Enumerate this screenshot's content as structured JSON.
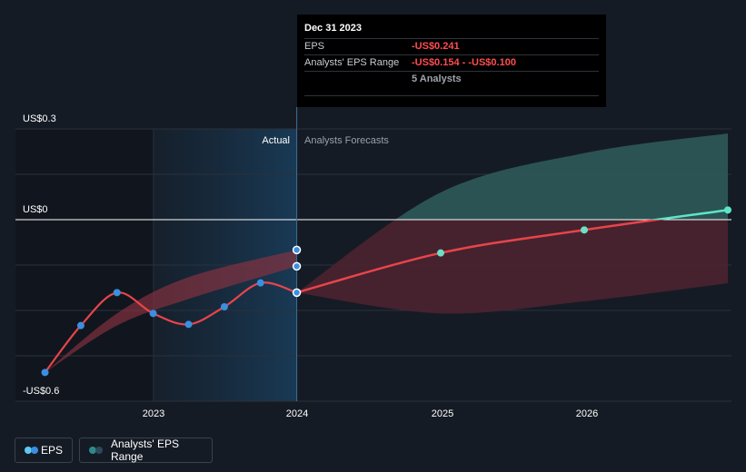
{
  "chart_data": {
    "type": "line",
    "y_axis_labels": [
      "US$0.3",
      "US$0",
      "-US$0.6"
    ],
    "x_ticks": [
      "2023",
      "2024",
      "2025",
      "2026"
    ],
    "region_labels": {
      "actual": "Actual",
      "forecast": "Analysts Forecasts"
    },
    "ylim": [
      -0.6,
      0.3
    ],
    "series": [
      {
        "name": "EPS",
        "points": [
          {
            "x": "2022-03-31",
            "y": -0.505
          },
          {
            "x": "2022-06-30",
            "y": -0.35
          },
          {
            "x": "2022-09-30",
            "y": -0.241
          },
          {
            "x": "2022-12-31",
            "y": -0.31
          },
          {
            "x": "2023-03-31",
            "y": -0.346
          },
          {
            "x": "2023-06-30",
            "y": -0.288
          },
          {
            "x": "2023-09-30",
            "y": -0.209
          },
          {
            "x": "2023-12-31",
            "y": -0.241
          }
        ],
        "color": "#3b8fe0"
      },
      {
        "name": "EPS Forecast",
        "points": [
          {
            "x": "2023-12-31",
            "y": -0.241
          },
          {
            "x": "2024-12-31",
            "y": -0.11
          },
          {
            "x": "2025-12-31",
            "y": -0.034
          },
          {
            "x": "2026-12-31",
            "y": 0.032
          }
        ],
        "color": "#e8444b"
      },
      {
        "name": "Analysts' EPS Range",
        "lower": [
          {
            "x": "2023-12-31",
            "y": -0.241
          },
          {
            "x": "2024-12-31",
            "y": -0.31
          },
          {
            "x": "2025-12-31",
            "y": -0.27
          },
          {
            "x": "2026-12-31",
            "y": -0.21
          }
        ],
        "upper": [
          {
            "x": "2023-12-31",
            "y": -0.241
          },
          {
            "x": "2024-12-31",
            "y": 0.09
          },
          {
            "x": "2025-12-31",
            "y": 0.22
          },
          {
            "x": "2026-12-31",
            "y": 0.285
          }
        ]
      },
      {
        "name": "Past Analysts' EPS Range",
        "lower": [
          {
            "x": "2022-03-31",
            "y": -0.505
          },
          {
            "x": "2022-09-30",
            "y": -0.35
          },
          {
            "x": "2023-03-31",
            "y": -0.262
          },
          {
            "x": "2023-12-31",
            "y": -0.154
          }
        ],
        "upper": [
          {
            "x": "2022-03-31",
            "y": -0.505
          },
          {
            "x": "2022-09-30",
            "y": -0.31
          },
          {
            "x": "2023-03-31",
            "y": -0.19
          },
          {
            "x": "2023-12-31",
            "y": -0.1
          }
        ]
      }
    ],
    "highlight_markers": [
      {
        "x": "2023-12-31",
        "y": -0.1
      },
      {
        "x": "2023-12-31",
        "y": -0.154
      },
      {
        "x": "2023-12-31",
        "y": -0.241
      }
    ],
    "colors": {
      "eps": "#3b8fe0",
      "forecast_line": "#e8444b",
      "forecast_line_positive": "#5ee5c9",
      "range_positive": "#2e5a5a",
      "range_negative": "#4a2430"
    }
  },
  "tooltip": {
    "date": "Dec 31 2023",
    "rows": [
      {
        "key": "EPS",
        "value": "-US$0.241"
      },
      {
        "key": "Analysts' EPS Range",
        "value": "-US$0.154 - -US$0.100"
      },
      {
        "key": "",
        "value": "5 Analysts"
      }
    ]
  },
  "legend": {
    "eps_label": "EPS",
    "range_label": "Analysts' EPS Range",
    "eps_colors": [
      "#5ec8f0",
      "#3b8fe0"
    ],
    "range_colors": [
      "#2e8a8a",
      "#2b4a5a"
    ]
  }
}
